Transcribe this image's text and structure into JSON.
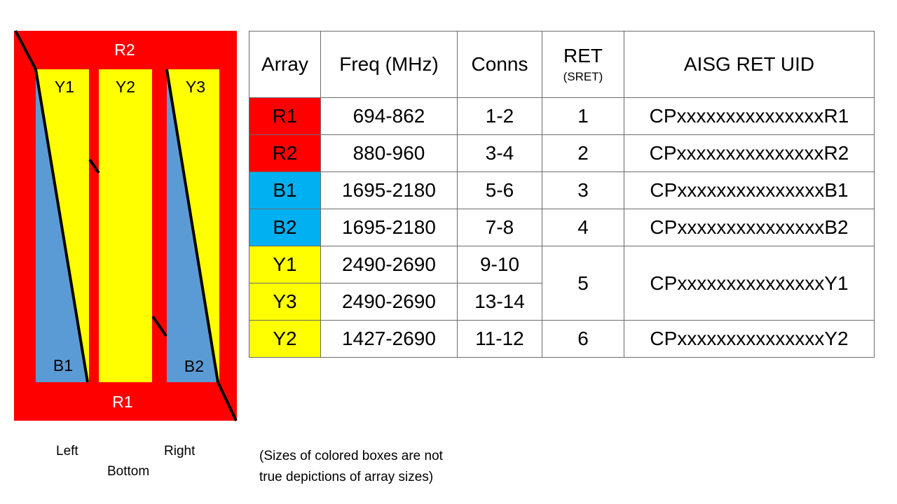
{
  "diagram": {
    "top_label": "R2",
    "bottom_label": "R1",
    "column_labels": [
      "Y1",
      "Y2",
      "Y3"
    ],
    "lower_labels": [
      "B1",
      "B2"
    ],
    "orientation_labels": {
      "left": "Left",
      "right": "Right",
      "bottom": "Bottom"
    },
    "colors": {
      "red": "#ff0000",
      "yellow": "#ffff00",
      "blue": "#5b9bd5"
    }
  },
  "table": {
    "headers": {
      "array": "Array",
      "freq": "Freq (MHz)",
      "conns": "Conns",
      "ret": "RET",
      "ret_sub": "(SRET)",
      "uid": "AISG RET UID"
    },
    "rows": [
      {
        "array": "R1",
        "freq": "694-862",
        "conns": "1-2",
        "ret": "1",
        "uid": "CPxxxxxxxxxxxxxxxR1",
        "color": "#ff0000"
      },
      {
        "array": "R2",
        "freq": "880-960",
        "conns": "3-4",
        "ret": "2",
        "uid": "CPxxxxxxxxxxxxxxxR2",
        "color": "#ff0000"
      },
      {
        "array": "B1",
        "freq": "1695-2180",
        "conns": "5-6",
        "ret": "3",
        "uid": "CPxxxxxxxxxxxxxxxB1",
        "color": "#00b0f0"
      },
      {
        "array": "B2",
        "freq": "1695-2180",
        "conns": "7-8",
        "ret": "4",
        "uid": "CPxxxxxxxxxxxxxxxB2",
        "color": "#00b0f0"
      },
      {
        "array": "Y1",
        "freq": "2490-2690",
        "conns": "9-10",
        "ret": "5",
        "uid": "CPxxxxxxxxxxxxxxxY1",
        "color": "#ffff00"
      },
      {
        "array": "Y3",
        "freq": "2490-2690",
        "conns": "13-14",
        "color": "#ffff00"
      },
      {
        "array": "Y2",
        "freq": "1427-2690",
        "conns": "11-12",
        "ret": "6",
        "uid": "CPxxxxxxxxxxxxxxxY2",
        "color": "#ffff00"
      }
    ]
  },
  "note": {
    "line1": "(Sizes of colored boxes are not",
    "line2": "true depictions of array sizes)"
  }
}
